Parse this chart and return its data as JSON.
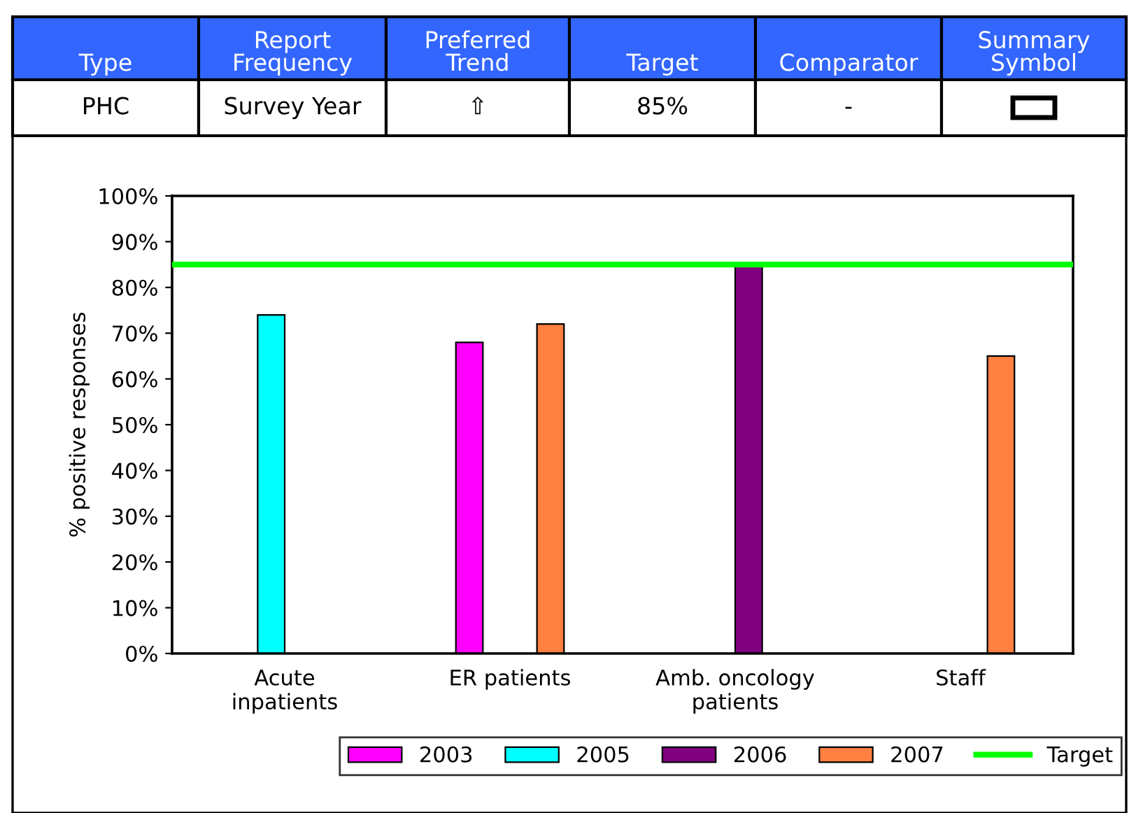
{
  "chart_data": {
    "type": "bar",
    "ylabel": "% positive responses",
    "categories": [
      "Acute\ninpatients",
      "ER patients",
      "Amb. oncology\npatients",
      "Staff"
    ],
    "series": [
      {
        "name": "2003",
        "color": "#ff00ff",
        "values": [
          null,
          68,
          null,
          null
        ]
      },
      {
        "name": "2005",
        "color": "#00ffff",
        "values": [
          74,
          null,
          null,
          null
        ]
      },
      {
        "name": "2006",
        "color": "#800080",
        "values": [
          null,
          null,
          85,
          null
        ]
      },
      {
        "name": "2007",
        "color": "#ff8040",
        "values": [
          null,
          72,
          null,
          65
        ]
      }
    ],
    "ylim": [
      0,
      100
    ],
    "yticks": [
      {
        "value": 0,
        "label": "0%"
      },
      {
        "value": 10,
        "label": "10%"
      },
      {
        "value": 20,
        "label": "20%"
      },
      {
        "value": 30,
        "label": "30%"
      },
      {
        "value": 40,
        "label": "40%"
      },
      {
        "value": 50,
        "label": "50%"
      },
      {
        "value": 60,
        "label": "60%"
      },
      {
        "value": 70,
        "label": "70%"
      },
      {
        "value": 80,
        "label": "80%"
      },
      {
        "value": 90,
        "label": "90%"
      },
      {
        "value": 100,
        "label": "100%"
      }
    ],
    "ref_lines": [
      {
        "axis": "y",
        "value": 85,
        "label": "Target",
        "color": "#00ff00"
      }
    ],
    "legend": "bottom",
    "grid": false,
    "annotations": [
      "Type",
      "Report\nFrequency",
      "Preferred\nTrend",
      "Target",
      "Comparator",
      "Summary\nSymbol",
      "PHC",
      "Survey Year",
      "⇧",
      "85%",
      "-"
    ]
  }
}
